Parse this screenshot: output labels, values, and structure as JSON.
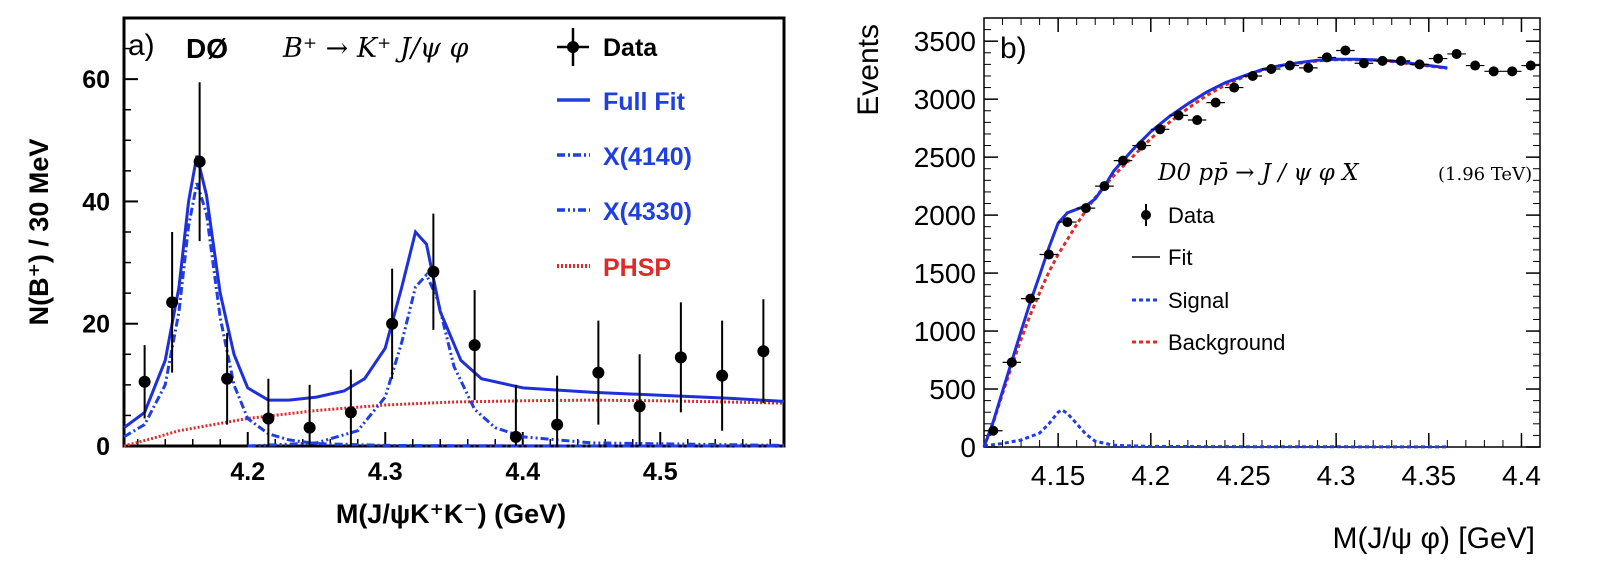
{
  "colors": {
    "fit": "#1f2fd9",
    "signal": "#1f3fe0",
    "background": "#e02a2a",
    "data": "#000000",
    "legend_blue": "#1f3fe0",
    "legend_red": "#e02a2a"
  },
  "chart_data": [
    {
      "type": "scatter",
      "panel_label": "a)",
      "experiment_label": "DØ",
      "decay_label": "B⁺ → K⁺ J/ψ φ",
      "xlabel": "M(J/ψK⁺K⁻) (GeV)",
      "ylabel": "N(B⁺) / 30 MeV",
      "xlim": [
        4.11,
        4.59
      ],
      "ylim": [
        0,
        70
      ],
      "xticks": [
        {
          "v": 4.2,
          "label": "4.2"
        },
        {
          "v": 4.3,
          "label": "4.3"
        },
        {
          "v": 4.4,
          "label": "4.4"
        },
        {
          "v": 4.5,
          "label": "4.5"
        }
      ],
      "yticks": [
        {
          "v": 0,
          "label": "0"
        },
        {
          "v": 20,
          "label": "20"
        },
        {
          "v": 40,
          "label": "40"
        },
        {
          "v": 60,
          "label": "60"
        }
      ],
      "legend": {
        "data": "Data",
        "full_fit": "Full Fit",
        "x4140": "X(4140)",
        "x4330": "X(4330)",
        "phsp": "PHSP"
      },
      "points": [
        {
          "x": 4.125,
          "y": 10.5,
          "err": 6.0
        },
        {
          "x": 4.145,
          "y": 23.5,
          "err": 11.5
        },
        {
          "x": 4.165,
          "y": 46.5,
          "err": 13.0
        },
        {
          "x": 4.185,
          "y": 11.0,
          "err": 7.5
        },
        {
          "x": 4.215,
          "y": 4.5,
          "err": 6.5
        },
        {
          "x": 4.245,
          "y": 3.0,
          "err": 7.0
        },
        {
          "x": 4.275,
          "y": 5.5,
          "err": 7.0
        },
        {
          "x": 4.305,
          "y": 20.0,
          "err": 9.0
        },
        {
          "x": 4.335,
          "y": 28.5,
          "err": 9.5
        },
        {
          "x": 4.365,
          "y": 16.5,
          "err": 9.0
        },
        {
          "x": 4.395,
          "y": 1.5,
          "err": 8.5
        },
        {
          "x": 4.425,
          "y": 3.5,
          "err": 8.0
        },
        {
          "x": 4.455,
          "y": 12.0,
          "err": 8.5
        },
        {
          "x": 4.485,
          "y": 6.5,
          "err": 8.5
        },
        {
          "x": 4.515,
          "y": 14.5,
          "err": 9.0
        },
        {
          "x": 4.545,
          "y": 11.5,
          "err": 9.0
        },
        {
          "x": 4.575,
          "y": 15.5,
          "err": 8.5
        }
      ],
      "curves": {
        "full_fit": [
          [
            4.11,
            3.0
          ],
          [
            4.125,
            5.5
          ],
          [
            4.14,
            14
          ],
          [
            4.15,
            26
          ],
          [
            4.157,
            40
          ],
          [
            4.163,
            47.5
          ],
          [
            4.17,
            41
          ],
          [
            4.18,
            25
          ],
          [
            4.19,
            15
          ],
          [
            4.2,
            9.5
          ],
          [
            4.215,
            7.5
          ],
          [
            4.23,
            7.5
          ],
          [
            4.25,
            8.0
          ],
          [
            4.27,
            9.0
          ],
          [
            4.285,
            11
          ],
          [
            4.3,
            16
          ],
          [
            4.312,
            26
          ],
          [
            4.322,
            35
          ],
          [
            4.33,
            33
          ],
          [
            4.34,
            22
          ],
          [
            4.355,
            14
          ],
          [
            4.37,
            11
          ],
          [
            4.4,
            9.5
          ],
          [
            4.45,
            8.8
          ],
          [
            4.5,
            8.3
          ],
          [
            4.55,
            7.8
          ],
          [
            4.59,
            7.3
          ]
        ],
        "x4140": [
          [
            4.11,
            1.5
          ],
          [
            4.125,
            3.5
          ],
          [
            4.14,
            10
          ],
          [
            4.15,
            22
          ],
          [
            4.157,
            36
          ],
          [
            4.163,
            43
          ],
          [
            4.17,
            38
          ],
          [
            4.18,
            21
          ],
          [
            4.19,
            10
          ],
          [
            4.2,
            4.5
          ],
          [
            4.215,
            2.0
          ],
          [
            4.23,
            1.0
          ],
          [
            4.25,
            0.4
          ],
          [
            4.3,
            0.1
          ],
          [
            4.35,
            0.05
          ],
          [
            4.45,
            0.0
          ],
          [
            4.59,
            0.0
          ]
        ],
        "x4330": [
          [
            4.2,
            0.0
          ],
          [
            4.25,
            0.5
          ],
          [
            4.28,
            2.5
          ],
          [
            4.3,
            8
          ],
          [
            4.312,
            17
          ],
          [
            4.322,
            26
          ],
          [
            4.33,
            28
          ],
          [
            4.338,
            24
          ],
          [
            4.35,
            13
          ],
          [
            4.365,
            6
          ],
          [
            4.38,
            3
          ],
          [
            4.4,
            1.5
          ],
          [
            4.45,
            0.5
          ],
          [
            4.59,
            0.1
          ]
        ],
        "phsp": [
          [
            4.11,
            0.0
          ],
          [
            4.13,
            1.2
          ],
          [
            4.15,
            2.5
          ],
          [
            4.2,
            4.5
          ],
          [
            4.25,
            5.8
          ],
          [
            4.3,
            6.7
          ],
          [
            4.35,
            7.2
          ],
          [
            4.4,
            7.4
          ],
          [
            4.45,
            7.5
          ],
          [
            4.5,
            7.4
          ],
          [
            4.55,
            7.2
          ],
          [
            4.59,
            7.0
          ]
        ]
      }
    },
    {
      "type": "scatter",
      "panel_label": "b)",
      "process_label": "D0   pp̄ → J / ψ  φ X",
      "energy_label": "(1.96 TeV)",
      "xlabel": "M(J/ψ φ) [GeV]",
      "ylabel": "Events",
      "xlim": [
        4.11,
        4.41
      ],
      "ylim": [
        0,
        3700
      ],
      "xticks": [
        {
          "v": 4.15,
          "label": "4.15"
        },
        {
          "v": 4.2,
          "label": "4.2"
        },
        {
          "v": 4.25,
          "label": "4.25"
        },
        {
          "v": 4.3,
          "label": "4.3"
        },
        {
          "v": 4.35,
          "label": "4.35"
        },
        {
          "v": 4.4,
          "label": "4.4"
        }
      ],
      "yticks": [
        {
          "v": 0,
          "label": "0"
        },
        {
          "v": 500,
          "label": "500"
        },
        {
          "v": 1000,
          "label": "1000"
        },
        {
          "v": 1500,
          "label": "1500"
        },
        {
          "v": 2000,
          "label": "2000"
        },
        {
          "v": 2500,
          "label": "2500"
        },
        {
          "v": 3000,
          "label": "3000"
        },
        {
          "v": 3500,
          "label": "3500"
        }
      ],
      "legend": {
        "data": "Data",
        "fit": "Fit",
        "signal": "Signal",
        "background": "Background"
      },
      "points": [
        {
          "x": 4.115,
          "y": 140
        },
        {
          "x": 4.125,
          "y": 730
        },
        {
          "x": 4.135,
          "y": 1280
        },
        {
          "x": 4.145,
          "y": 1660
        },
        {
          "x": 4.155,
          "y": 1940
        },
        {
          "x": 4.165,
          "y": 2060
        },
        {
          "x": 4.175,
          "y": 2250
        },
        {
          "x": 4.185,
          "y": 2470
        },
        {
          "x": 4.195,
          "y": 2600
        },
        {
          "x": 4.205,
          "y": 2740
        },
        {
          "x": 4.215,
          "y": 2860
        },
        {
          "x": 4.225,
          "y": 2820
        },
        {
          "x": 4.235,
          "y": 2970
        },
        {
          "x": 4.245,
          "y": 3100
        },
        {
          "x": 4.255,
          "y": 3200
        },
        {
          "x": 4.265,
          "y": 3260
        },
        {
          "x": 4.275,
          "y": 3290
        },
        {
          "x": 4.285,
          "y": 3270
        },
        {
          "x": 4.295,
          "y": 3360
        },
        {
          "x": 4.305,
          "y": 3420
        },
        {
          "x": 4.315,
          "y": 3310
        },
        {
          "x": 4.325,
          "y": 3330
        },
        {
          "x": 4.335,
          "y": 3330
        },
        {
          "x": 4.345,
          "y": 3300
        },
        {
          "x": 4.355,
          "y": 3350
        },
        {
          "x": 4.365,
          "y": 3390
        },
        {
          "x": 4.375,
          "y": 3290
        },
        {
          "x": 4.385,
          "y": 3240
        },
        {
          "x": 4.395,
          "y": 3240
        },
        {
          "x": 4.405,
          "y": 3290
        }
      ],
      "curves": {
        "fit": [
          [
            4.11,
            0
          ],
          [
            4.115,
            220
          ],
          [
            4.12,
            480
          ],
          [
            4.125,
            740
          ],
          [
            4.13,
            1000
          ],
          [
            4.135,
            1250
          ],
          [
            4.14,
            1480
          ],
          [
            4.145,
            1720
          ],
          [
            4.15,
            1930
          ],
          [
            4.155,
            2020
          ],
          [
            4.16,
            2050
          ],
          [
            4.165,
            2080
          ],
          [
            4.17,
            2140
          ],
          [
            4.175,
            2250
          ],
          [
            4.18,
            2380
          ],
          [
            4.19,
            2560
          ],
          [
            4.2,
            2720
          ],
          [
            4.21,
            2850
          ],
          [
            4.22,
            2960
          ],
          [
            4.23,
            3060
          ],
          [
            4.24,
            3140
          ],
          [
            4.25,
            3200
          ],
          [
            4.26,
            3255
          ],
          [
            4.27,
            3290
          ],
          [
            4.28,
            3315
          ],
          [
            4.29,
            3335
          ],
          [
            4.3,
            3345
          ],
          [
            4.31,
            3345
          ],
          [
            4.32,
            3340
          ],
          [
            4.33,
            3330
          ],
          [
            4.34,
            3310
          ],
          [
            4.35,
            3290
          ],
          [
            4.36,
            3270
          ]
        ],
        "background": [
          [
            4.11,
            0
          ],
          [
            4.115,
            210
          ],
          [
            4.12,
            460
          ],
          [
            4.125,
            700
          ],
          [
            4.13,
            930
          ],
          [
            4.135,
            1140
          ],
          [
            4.14,
            1330
          ],
          [
            4.145,
            1510
          ],
          [
            4.15,
            1660
          ],
          [
            4.155,
            1790
          ],
          [
            4.16,
            1920
          ],
          [
            4.165,
            2040
          ],
          [
            4.17,
            2150
          ],
          [
            4.175,
            2250
          ],
          [
            4.18,
            2340
          ],
          [
            4.19,
            2500
          ],
          [
            4.2,
            2660
          ],
          [
            4.21,
            2800
          ],
          [
            4.22,
            2920
          ],
          [
            4.23,
            3030
          ],
          [
            4.24,
            3120
          ],
          [
            4.25,
            3190
          ],
          [
            4.26,
            3250
          ],
          [
            4.27,
            3285
          ],
          [
            4.28,
            3310
          ],
          [
            4.29,
            3330
          ],
          [
            4.3,
            3340
          ],
          [
            4.31,
            3340
          ],
          [
            4.32,
            3335
          ],
          [
            4.33,
            3325
          ],
          [
            4.34,
            3305
          ],
          [
            4.35,
            3285
          ],
          [
            4.36,
            3265
          ]
        ],
        "signal": [
          [
            4.11,
            10
          ],
          [
            4.12,
            30
          ],
          [
            4.13,
            60
          ],
          [
            4.14,
            120
          ],
          [
            4.145,
            200
          ],
          [
            4.15,
            300
          ],
          [
            4.152,
            320
          ],
          [
            4.155,
            290
          ],
          [
            4.16,
            200
          ],
          [
            4.165,
            110
          ],
          [
            4.17,
            50
          ],
          [
            4.18,
            15
          ],
          [
            4.2,
            5
          ],
          [
            4.25,
            3
          ],
          [
            4.3,
            2
          ],
          [
            4.36,
            1
          ]
        ]
      }
    }
  ]
}
